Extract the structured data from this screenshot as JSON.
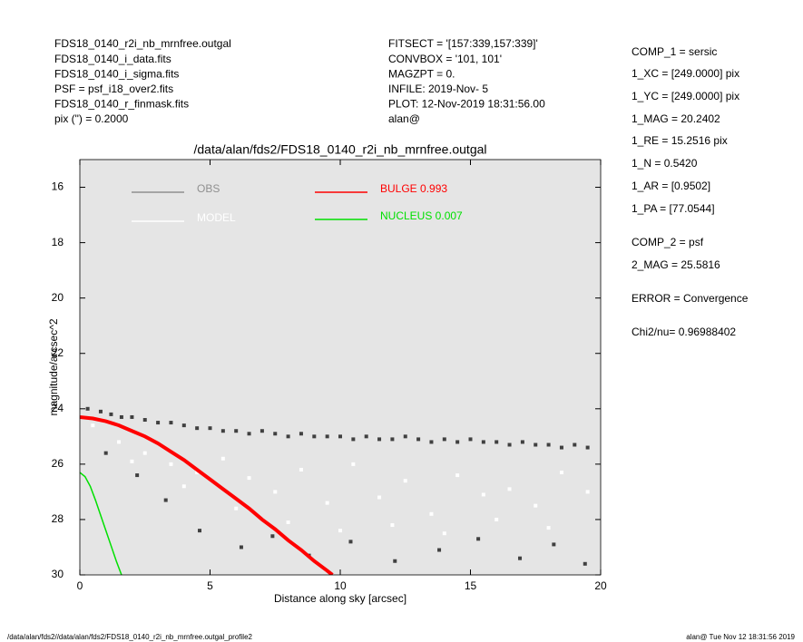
{
  "chart_data": {
    "type": "scatter",
    "title": "/data/alan/fds2/FDS18_0140_r2i_nb_mrnfree.outgal",
    "x_label": "Distance along sky [arcsec]",
    "y_label": "magnitude/arcsec^2",
    "xlim": [
      0,
      20
    ],
    "xticks": [
      0,
      5,
      10,
      15,
      20
    ],
    "ylim": [
      30,
      15
    ],
    "yticks": [
      16,
      18,
      20,
      22,
      24,
      26,
      28,
      30
    ],
    "background": "#e5e5e5",
    "series": [
      {
        "name": "OBS",
        "kind": "scatter",
        "color": "#404040",
        "legend_color": "#909090",
        "x": [
          0.3,
          0.8,
          1.2,
          1.6,
          2.0,
          2.5,
          3.0,
          3.5,
          4.0,
          4.5,
          5.0,
          5.5,
          6.0,
          6.5,
          7.0,
          7.5,
          8.0,
          8.5,
          9.0,
          9.5,
          10,
          10.5,
          11,
          11.5,
          12,
          12.5,
          13,
          13.5,
          14,
          14.5,
          15,
          15.5,
          16,
          16.5,
          17,
          17.5,
          18,
          18.5,
          19,
          19.5,
          1.0,
          2.2,
          3.3,
          4.6,
          6.2,
          7.4,
          8.8,
          10.4,
          12.1,
          13.8,
          15.3,
          16.9,
          18.2,
          19.4
        ],
        "values": [
          24.0,
          24.1,
          24.2,
          24.3,
          24.3,
          24.4,
          24.5,
          24.5,
          24.6,
          24.7,
          24.7,
          24.8,
          24.8,
          24.9,
          24.8,
          24.9,
          25.0,
          24.9,
          25.0,
          25.0,
          25.0,
          25.1,
          25.0,
          25.1,
          25.1,
          25.0,
          25.1,
          25.2,
          25.1,
          25.2,
          25.1,
          25.2,
          25.2,
          25.3,
          25.2,
          25.3,
          25.3,
          25.4,
          25.3,
          25.4,
          25.6,
          26.4,
          27.3,
          28.4,
          29.0,
          28.6,
          29.3,
          28.8,
          29.5,
          29.1,
          28.7,
          29.4,
          28.9,
          29.6
        ]
      },
      {
        "name": "MODEL",
        "kind": "scatter",
        "color": "#ffffff",
        "legend_color": "#ffffff",
        "x": [
          0.5,
          1.5,
          2.5,
          3.5,
          4.5,
          5.5,
          6.5,
          7.5,
          8.5,
          9.5,
          10.5,
          11.5,
          12.5,
          13.5,
          14.5,
          15.5,
          16.5,
          17.5,
          18.5,
          19.5,
          2.0,
          4.0,
          6.0,
          8.0,
          10.0,
          12.0,
          14.0,
          16.0,
          18.0
        ],
        "values": [
          24.6,
          25.2,
          25.6,
          26.0,
          26.3,
          25.8,
          26.5,
          27.0,
          26.2,
          27.4,
          26.0,
          27.2,
          26.6,
          27.8,
          26.4,
          27.1,
          26.9,
          27.5,
          26.3,
          27.0,
          25.9,
          26.8,
          27.6,
          28.1,
          28.4,
          28.2,
          28.5,
          28.0,
          28.3
        ]
      },
      {
        "name": "BULGE  0.993",
        "kind": "line",
        "color": "#ff0000",
        "x": [
          0,
          0.5,
          1,
          1.5,
          2,
          2.5,
          3,
          3.5,
          4,
          4.5,
          5,
          5.5,
          6,
          6.5,
          7,
          7.5,
          8,
          8.5,
          9,
          9.5,
          9.7
        ],
        "values": [
          24.3,
          24.35,
          24.45,
          24.6,
          24.8,
          25.0,
          25.25,
          25.55,
          25.85,
          26.2,
          26.55,
          26.9,
          27.25,
          27.6,
          28.0,
          28.35,
          28.75,
          29.1,
          29.5,
          29.85,
          30.0
        ]
      },
      {
        "name": "NUCLEUS  0.007",
        "kind": "line",
        "color": "#00e000",
        "x": [
          0,
          0.2,
          0.4,
          0.6,
          0.8,
          1.0,
          1.2,
          1.4,
          1.6
        ],
        "values": [
          26.3,
          26.45,
          26.8,
          27.3,
          27.85,
          28.4,
          28.95,
          29.5,
          30.0
        ]
      }
    ],
    "left_info": [
      "FDS18_0140_r2i_nb_mrnfree.outgal",
      "FDS18_0140_i_data.fits",
      "FDS18_0140_i_sigma.fits",
      "PSF    = psf_i18_over2.fits",
      "FDS18_0140_r_finmask.fits",
      "pix (\") =  0.2000"
    ],
    "mid_info": [
      "FITSECT = '[157:339,157:339]'",
      "CONVBOX = '101, 101'",
      "MAGZPT =             0.",
      "INFILE: 2019-Nov- 5",
      "PLOT: 12-Nov-2019 18:31:56.00",
      "alan@"
    ],
    "params": [
      "COMP_1  = sersic",
      "1_XC    = [249.0000] pix",
      "1_YC    = [249.0000] pix",
      "1_MAG   = 20.2402",
      "1_RE    = 15.2516 pix",
      "1_N     = 0.5420",
      "1_AR    = [0.9502]",
      "1_PA    = [77.0544]",
      "COMP_2  = psf",
      "2_MAG   = 25.5816",
      "ERROR   = Convergence",
      "Chi2/nu=      0.96988402"
    ],
    "footer_left": "/data/alan/fds2//data/alan/fds2/FDS18_0140_r2i_nb_mrnfree.outgal_profile2",
    "footer_right": "alan@  Tue Nov 12 18:31:56 2019"
  }
}
